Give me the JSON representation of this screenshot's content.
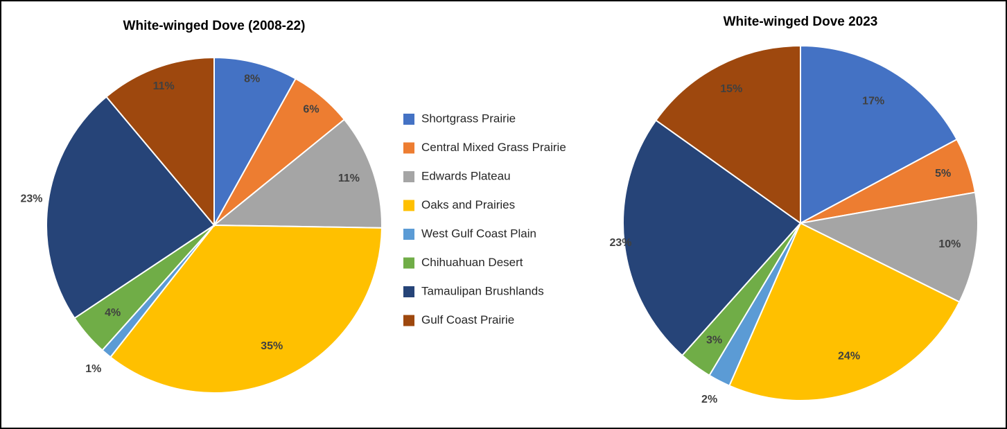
{
  "legend": {
    "labels": [
      "Shortgrass Prairie",
      "Central Mixed Grass Prairie",
      "Edwards Plateau",
      "Oaks and Prairies",
      "West Gulf Coast Plain",
      "Chihuahuan Desert",
      "Tamaulipan Brushlands",
      "Gulf Coast Prairie"
    ],
    "colors": [
      "#4472c4",
      "#ed7d31",
      "#a5a5a5",
      "#ffc000",
      "#5b9bd5",
      "#70ad47",
      "#264478",
      "#9e480e"
    ]
  },
  "chart_data": [
    {
      "type": "pie",
      "title": "White-winged Dove (2008-22)",
      "values": [
        8,
        6,
        11,
        35,
        1,
        4,
        23,
        11
      ],
      "value_labels": [
        "8%",
        "6%",
        "11%",
        "35%",
        "1%",
        "4%",
        "23%",
        "11%"
      ]
    },
    {
      "type": "pie",
      "title": "White-winged Dove 2023",
      "values": [
        17,
        5,
        10,
        24,
        2,
        3,
        23,
        15
      ],
      "value_labels": [
        "17%",
        "5%",
        "10%",
        "24%",
        "2%",
        "3%",
        "23%",
        "15%"
      ]
    }
  ]
}
